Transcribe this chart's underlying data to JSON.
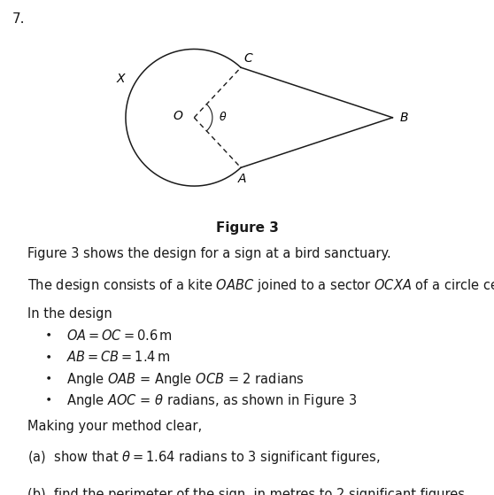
{
  "question_number": "7.",
  "figure_label": "Figure 3",
  "OA": 0.6,
  "AB": 1.4,
  "theta": 1.64,
  "background_color": "#ffffff",
  "line_color": "#1a1a1a",
  "dashed_color": "#1a1a1a",
  "font_size_text": 10.5,
  "font_size_labels": 10,
  "diagram_xlim": [
    -1.0,
    2.1
  ],
  "diagram_ylim": [
    -0.9,
    0.9
  ]
}
